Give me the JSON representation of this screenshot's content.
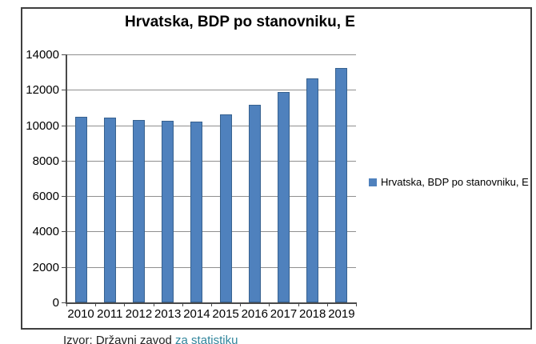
{
  "page": {
    "background": "#ffffff"
  },
  "chart": {
    "title": "Hrvatska, BDP po stanovniku, E",
    "legend_label": "Hrvatska, BDP po stanovniku, E"
  },
  "chart_data": {
    "type": "bar",
    "title": "Hrvatska, BDP po stanovniku, E",
    "categories": [
      "2010",
      "2011",
      "2012",
      "2013",
      "2014",
      "2015",
      "2016",
      "2017",
      "2018",
      "2019"
    ],
    "values": [
      10500,
      10450,
      10300,
      10250,
      10200,
      10600,
      11150,
      11900,
      12650,
      13250
    ],
    "xlabel": "",
    "ylabel": "",
    "ylim": [
      0,
      14000
    ],
    "ytick_step": 2000,
    "grid": true,
    "legend_position": "right",
    "legend_entries": [
      "Hrvatska, BDP po stanovniku, E"
    ],
    "bar_color": "#4F81BD",
    "bar_border_color": "#36618F"
  },
  "caption": {
    "prefix": "Izvor: Državni zavod ",
    "link": "za statistiku",
    "link_color": "#31859C"
  }
}
